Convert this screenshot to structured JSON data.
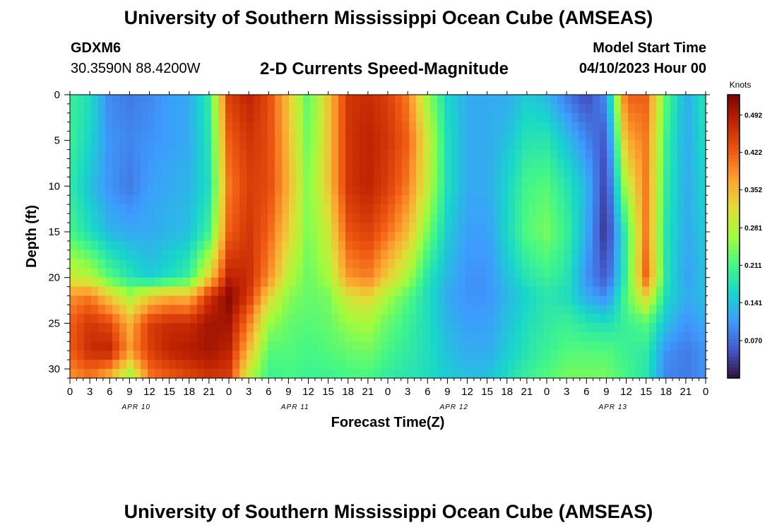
{
  "header": {
    "title": "University of Southern Mississippi Ocean Cube (AMSEAS)",
    "station_id": "GDXM6",
    "station_coords": "30.3590N  88.4200W",
    "plot_title": "2-D Currents Speed-Magnitude",
    "start_label": "Model Start Time",
    "start_date": "04/10/2023 Hour 00"
  },
  "footer": {
    "title": "University of Southern Mississippi Ocean Cube (AMSEAS)"
  },
  "chart_data": {
    "type": "heatmap",
    "xlabel": "Forecast Time(Z)",
    "ylabel": "Depth (ft)",
    "colorbar_label": "Knots",
    "x_range_hours": [
      0,
      96
    ],
    "ylim": [
      0,
      31
    ],
    "y_inverted": true,
    "x_tick_labels": [
      "0",
      "3",
      "6",
      "9",
      "12",
      "15",
      "18",
      "21",
      "0",
      "3",
      "6",
      "9",
      "12",
      "15",
      "18",
      "21",
      "0",
      "3",
      "6",
      "9",
      "12",
      "15",
      "18",
      "21",
      "0",
      "3",
      "6",
      "9",
      "12",
      "15",
      "18",
      "21",
      "0"
    ],
    "day_labels": [
      "APR 10",
      "APR 11",
      "APR 12",
      "APR 13"
    ],
    "y_ticks": [
      0,
      5,
      10,
      15,
      20,
      25,
      30
    ],
    "colorbar_ticks": [
      0.07,
      0.141,
      0.211,
      0.281,
      0.352,
      0.422,
      0.492
    ],
    "colorbar_range": [
      0,
      0.53
    ],
    "colormap": [
      "#30123b",
      "#4458cb",
      "#3e9bfe",
      "#18d6cb",
      "#46f884",
      "#a2fc3c",
      "#e1dd37",
      "#fea331",
      "#ef5911",
      "#c22402",
      "#7a0403"
    ],
    "depths_ft": [
      0,
      5,
      10,
      15,
      20,
      22,
      25,
      28,
      31
    ],
    "columns": [
      {
        "hour": 0,
        "speeds": [
          0.2,
          0.2,
          0.19,
          0.21,
          0.3,
          0.38,
          0.42,
          0.42,
          0.38
        ]
      },
      {
        "hour": 3,
        "speeds": [
          0.17,
          0.16,
          0.14,
          0.17,
          0.28,
          0.4,
          0.46,
          0.47,
          0.4
        ]
      },
      {
        "hour": 6,
        "speeds": [
          0.09,
          0.1,
          0.1,
          0.13,
          0.22,
          0.33,
          0.44,
          0.48,
          0.35
        ]
      },
      {
        "hour": 9,
        "speeds": [
          0.08,
          0.09,
          0.08,
          0.12,
          0.18,
          0.27,
          0.36,
          0.38,
          0.25
        ]
      },
      {
        "hour": 12,
        "speeds": [
          0.09,
          0.1,
          0.11,
          0.12,
          0.15,
          0.33,
          0.45,
          0.45,
          0.4
        ]
      },
      {
        "hour": 15,
        "speeds": [
          0.11,
          0.11,
          0.12,
          0.13,
          0.17,
          0.36,
          0.47,
          0.48,
          0.42
        ]
      },
      {
        "hour": 18,
        "speeds": [
          0.12,
          0.12,
          0.13,
          0.14,
          0.2,
          0.35,
          0.47,
          0.49,
          0.44
        ]
      },
      {
        "hour": 21,
        "speeds": [
          0.19,
          0.18,
          0.17,
          0.2,
          0.33,
          0.46,
          0.5,
          0.5,
          0.46
        ]
      },
      {
        "hour": 24,
        "speeds": [
          0.45,
          0.42,
          0.4,
          0.42,
          0.48,
          0.52,
          0.5,
          0.48,
          0.45
        ]
      },
      {
        "hour": 27,
        "speeds": [
          0.48,
          0.46,
          0.45,
          0.46,
          0.47,
          0.46,
          0.4,
          0.35,
          0.28
        ]
      },
      {
        "hour": 30,
        "speeds": [
          0.44,
          0.44,
          0.44,
          0.42,
          0.39,
          0.33,
          0.26,
          0.22,
          0.2
        ]
      },
      {
        "hour": 33,
        "speeds": [
          0.34,
          0.35,
          0.36,
          0.33,
          0.28,
          0.25,
          0.23,
          0.22,
          0.21
        ]
      },
      {
        "hour": 36,
        "speeds": [
          0.22,
          0.23,
          0.24,
          0.24,
          0.23,
          0.23,
          0.22,
          0.21,
          0.2
        ]
      },
      {
        "hour": 39,
        "speeds": [
          0.34,
          0.34,
          0.34,
          0.3,
          0.27,
          0.24,
          0.23,
          0.22,
          0.2
        ]
      },
      {
        "hour": 42,
        "speeds": [
          0.46,
          0.46,
          0.46,
          0.43,
          0.38,
          0.31,
          0.26,
          0.23,
          0.21
        ]
      },
      {
        "hour": 45,
        "speeds": [
          0.47,
          0.48,
          0.48,
          0.45,
          0.4,
          0.33,
          0.27,
          0.24,
          0.21
        ]
      },
      {
        "hour": 48,
        "speeds": [
          0.45,
          0.46,
          0.45,
          0.41,
          0.33,
          0.27,
          0.23,
          0.21,
          0.19
        ]
      },
      {
        "hour": 51,
        "speeds": [
          0.4,
          0.42,
          0.4,
          0.35,
          0.27,
          0.22,
          0.2,
          0.19,
          0.18
        ]
      },
      {
        "hour": 54,
        "speeds": [
          0.26,
          0.3,
          0.29,
          0.24,
          0.18,
          0.17,
          0.17,
          0.17,
          0.17
        ]
      },
      {
        "hour": 57,
        "speeds": [
          0.16,
          0.17,
          0.17,
          0.15,
          0.13,
          0.12,
          0.13,
          0.14,
          0.15
        ]
      },
      {
        "hour": 60,
        "speeds": [
          0.12,
          0.12,
          0.12,
          0.11,
          0.1,
          0.1,
          0.11,
          0.12,
          0.14
        ]
      },
      {
        "hour": 63,
        "speeds": [
          0.12,
          0.12,
          0.12,
          0.11,
          0.1,
          0.1,
          0.11,
          0.12,
          0.14
        ]
      },
      {
        "hour": 66,
        "speeds": [
          0.12,
          0.14,
          0.16,
          0.16,
          0.14,
          0.13,
          0.14,
          0.15,
          0.17
        ]
      },
      {
        "hour": 69,
        "speeds": [
          0.15,
          0.18,
          0.21,
          0.22,
          0.18,
          0.16,
          0.17,
          0.18,
          0.2
        ]
      },
      {
        "hour": 72,
        "speeds": [
          0.13,
          0.18,
          0.22,
          0.24,
          0.2,
          0.18,
          0.19,
          0.2,
          0.22
        ]
      },
      {
        "hour": 75,
        "speeds": [
          0.08,
          0.14,
          0.18,
          0.2,
          0.18,
          0.17,
          0.2,
          0.22,
          0.24
        ]
      },
      {
        "hour": 78,
        "speeds": [
          0.04,
          0.09,
          0.13,
          0.12,
          0.1,
          0.12,
          0.18,
          0.22,
          0.24
        ]
      },
      {
        "hour": 81,
        "speeds": [
          0.1,
          0.05,
          0.03,
          0.02,
          0.05,
          0.09,
          0.17,
          0.22,
          0.24
        ]
      },
      {
        "hour": 84,
        "speeds": [
          0.42,
          0.36,
          0.28,
          0.2,
          0.2,
          0.22,
          0.2,
          0.2,
          0.21
        ]
      },
      {
        "hour": 87,
        "speeds": [
          0.42,
          0.4,
          0.4,
          0.4,
          0.42,
          0.33,
          0.22,
          0.19,
          0.18
        ]
      },
      {
        "hour": 90,
        "speeds": [
          0.22,
          0.2,
          0.19,
          0.18,
          0.18,
          0.17,
          0.14,
          0.1,
          0.09
        ]
      },
      {
        "hour": 93,
        "speeds": [
          0.12,
          0.12,
          0.12,
          0.12,
          0.11,
          0.12,
          0.1,
          0.08,
          0.08
        ]
      },
      {
        "hour": 96,
        "speeds": [
          0.18,
          0.17,
          0.16,
          0.15,
          0.14,
          0.14,
          0.12,
          0.1,
          0.1
        ]
      }
    ]
  }
}
